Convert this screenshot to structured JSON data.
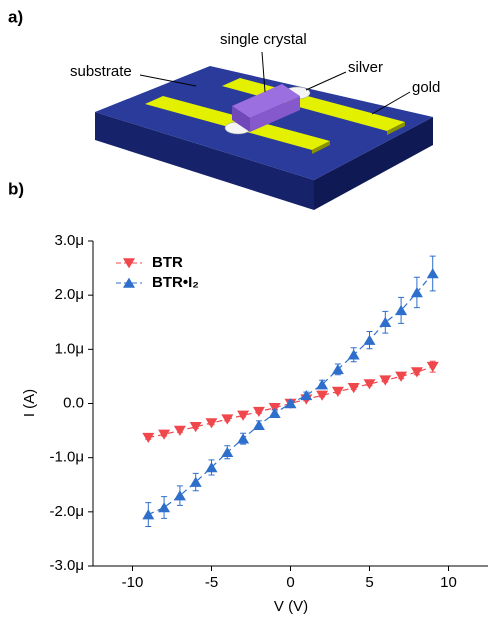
{
  "panel_a": {
    "label": "a)",
    "substrate": "substrate",
    "crystal": "single crystal",
    "silver": "silver",
    "gold": "gold"
  },
  "panel_b": {
    "label": "b)"
  },
  "chart_data": {
    "type": "errorline",
    "x_label": "V (V)",
    "y_label": "I (A)",
    "x": [
      -9,
      -8,
      -7,
      -6,
      -5,
      -4,
      -3,
      -2,
      -1,
      0,
      1,
      2,
      3,
      4,
      5,
      6,
      7,
      8,
      9
    ],
    "xlim": [
      -12.5,
      12.5
    ],
    "xticks": [
      -10,
      -5,
      0,
      5,
      10
    ],
    "ylim": [
      -3e-06,
      3e-06
    ],
    "yticks": [
      {
        "value": -3e-06,
        "label": "-3.0μ"
      },
      {
        "value": -2e-06,
        "label": "-2.0μ"
      },
      {
        "value": -1e-06,
        "label": "-1.0μ"
      },
      {
        "value": 0,
        "label": "0.0"
      },
      {
        "value": 1e-06,
        "label": "1.0μ"
      },
      {
        "value": 2e-06,
        "label": "2.0μ"
      },
      {
        "value": 3e-06,
        "label": "3.0μ"
      }
    ],
    "legend": "top-left",
    "series": [
      {
        "name": "BTR",
        "color": "#f0474d",
        "marker": "down",
        "values": [
          -6.3e-07,
          -5.7e-07,
          -5e-07,
          -4.3e-07,
          -3.6e-07,
          -2.9e-07,
          -2.2e-07,
          -1.5e-07,
          -8e-08,
          0,
          8e-08,
          1.5e-07,
          2.2e-07,
          2.9e-07,
          3.6e-07,
          4.3e-07,
          5e-07,
          5.8e-07,
          6.8e-07
        ],
        "errors": [
          3e-08,
          3e-08,
          3e-08,
          3e-08,
          3e-08,
          3e-08,
          3e-08,
          3e-08,
          3e-08,
          3e-08,
          3e-08,
          3e-08,
          3e-08,
          3e-08,
          3e-08,
          3e-08,
          4e-08,
          5e-08,
          1e-07
        ]
      },
      {
        "name": "BTR•I₂",
        "color": "#2f6fcc",
        "marker": "up",
        "values": [
          -2.05e-06,
          -1.92e-06,
          -1.7e-06,
          -1.45e-06,
          -1.18e-06,
          -9e-07,
          -6.5e-07,
          -4e-07,
          -1.8e-07,
          0,
          1.5e-07,
          3.5e-07,
          6.3e-07,
          9e-07,
          1.17e-06,
          1.5e-06,
          1.72e-06,
          2.05e-06,
          2.4e-06
        ],
        "errors": [
          2.2e-07,
          2e-07,
          1.8e-07,
          1.6e-07,
          1.4e-07,
          1.2e-07,
          1e-07,
          8e-08,
          6e-08,
          5e-08,
          6e-08,
          8e-08,
          1e-07,
          1.3e-07,
          1.6e-07,
          2e-07,
          2.4e-07,
          2.8e-07,
          3.2e-07
        ]
      }
    ]
  }
}
